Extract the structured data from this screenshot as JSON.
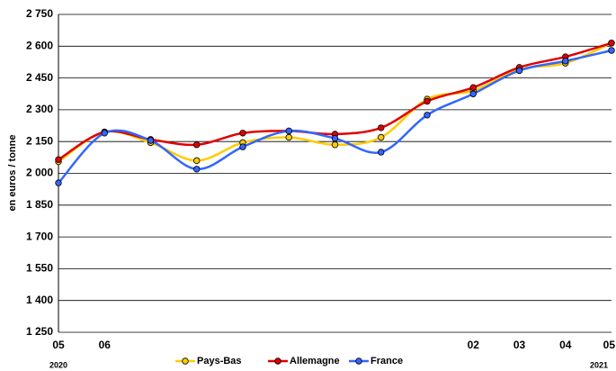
{
  "chart_data": {
    "type": "line",
    "y_label": "en euros / tonne",
    "categories": [
      "05",
      "06",
      null,
      null,
      null,
      null,
      null,
      null,
      null,
      "02",
      "03",
      "04",
      "05"
    ],
    "x_years": [
      "2020",
      null,
      null,
      null,
      null,
      null,
      null,
      null,
      null,
      null,
      null,
      null,
      "2021"
    ],
    "series": [
      {
        "name": "Pays-Bas",
        "color": "#ffcc00",
        "values": [
          2055,
          2195,
          2145,
          2060,
          2145,
          2170,
          2135,
          2170,
          2350,
          2390,
          2490,
          2520,
          2615
        ]
      },
      {
        "name": "Allemagne",
        "color": "#e00000",
        "values": [
          2065,
          2195,
          2160,
          2135,
          2190,
          2200,
          2185,
          2215,
          2340,
          2405,
          2500,
          2550,
          2615
        ]
      },
      {
        "name": "France",
        "color": "#3366ff",
        "values": [
          1955,
          2190,
          2155,
          2020,
          2125,
          2200,
          2165,
          2100,
          2275,
          2375,
          2485,
          2530,
          2580
        ]
      }
    ],
    "ylim": [
      1250,
      2750
    ],
    "yticks": [
      {
        "value": 1250,
        "label": "1 250"
      },
      {
        "value": 1400,
        "label": "1 400"
      },
      {
        "value": 1550,
        "label": "1 550"
      },
      {
        "value": 1700,
        "label": "1 700"
      },
      {
        "value": 1850,
        "label": "1 850"
      },
      {
        "value": 2000,
        "label": "2 000"
      },
      {
        "value": 2150,
        "label": "2 150"
      },
      {
        "value": 2300,
        "label": "2 300"
      },
      {
        "value": 2450,
        "label": "2 450"
      },
      {
        "value": 2600,
        "label": "2 600"
      },
      {
        "value": 2750,
        "label": "2 750"
      }
    ],
    "grid": true,
    "legend": "bottom"
  }
}
